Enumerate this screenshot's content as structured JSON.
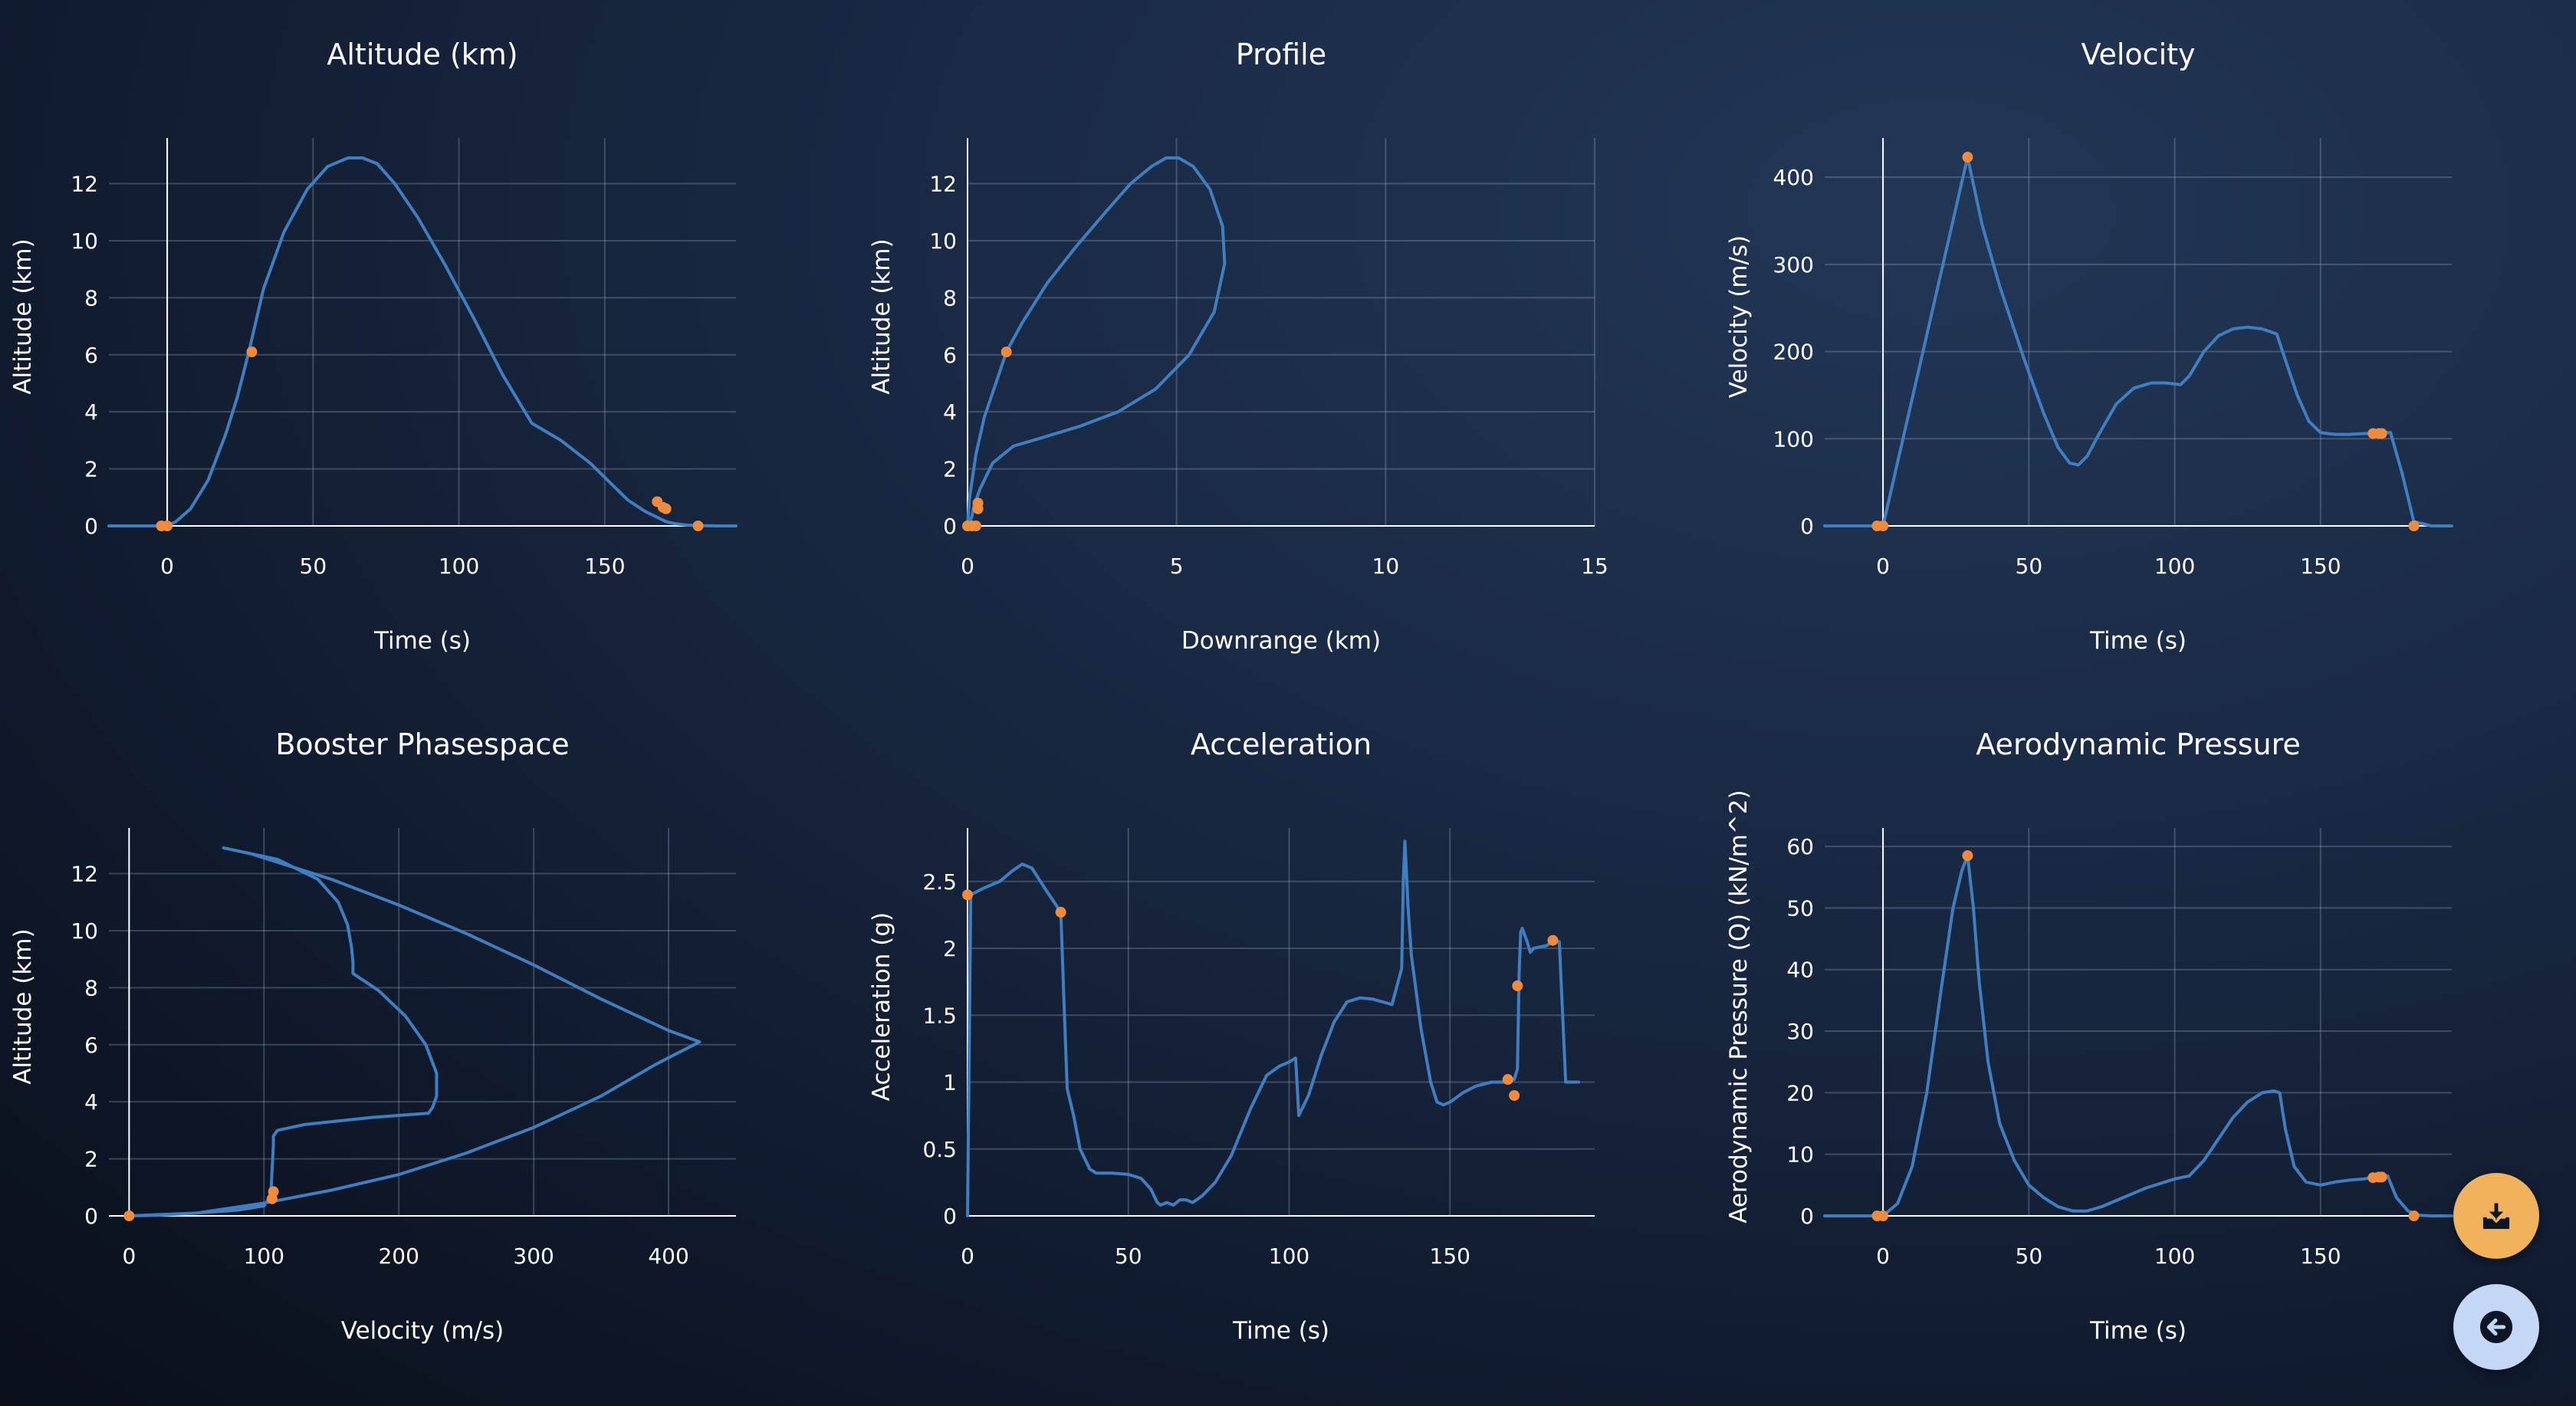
{
  "colors": {
    "series": "#3f7fc1",
    "points": "#f08a3c",
    "download_button": "#f0b25c",
    "back_button": "#c4d7f6"
  },
  "buttons": {
    "download_icon": "download-icon",
    "back_icon": "arrow-left-icon"
  },
  "chart_data": [
    {
      "type": "line",
      "title": "Altitude (km)",
      "xlabel": "Time (s)",
      "ylabel": "Altitude (km)",
      "xlim": [
        -20,
        195
      ],
      "ylim": [
        0,
        13.6
      ],
      "xticks": [
        0,
        50,
        100,
        150
      ],
      "yticks": [
        0,
        2,
        4,
        6,
        8,
        10,
        12
      ],
      "x_axis_at_zero": true,
      "y_axis_at_zero": true,
      "grid": true,
      "series": [
        {
          "x": [
            -20,
            -5,
            0,
            3,
            8,
            14,
            20,
            24,
            28,
            33,
            40,
            48,
            55,
            62,
            67,
            72,
            78,
            86,
            95,
            105,
            115,
            125,
            135,
            145,
            152,
            158,
            164,
            168,
            171,
            174,
            178,
            182,
            188,
            195
          ],
          "y": [
            0,
            0,
            0,
            0.15,
            0.6,
            1.6,
            3.2,
            4.5,
            6.1,
            8.3,
            10.3,
            11.8,
            12.6,
            12.9,
            12.9,
            12.7,
            12.0,
            10.8,
            9.2,
            7.3,
            5.3,
            3.6,
            3.0,
            2.2,
            1.5,
            0.9,
            0.5,
            0.3,
            0.15,
            0.08,
            0.03,
            0.01,
            0,
            0
          ]
        }
      ],
      "points": {
        "x": [
          -2,
          0,
          29,
          168,
          170,
          171,
          182
        ],
        "y": [
          0,
          0,
          6.1,
          0.85,
          0.65,
          0.6,
          0
        ]
      }
    },
    {
      "type": "line",
      "title": "Profile",
      "xlabel": "Downrange (km)",
      "ylabel": "Altitude (km)",
      "xlim": [
        0,
        15
      ],
      "ylim": [
        0,
        13.6
      ],
      "xticks": [
        0,
        5,
        10,
        15
      ],
      "yticks": [
        0,
        2,
        4,
        6,
        8,
        10,
        12
      ],
      "x_axis_at_zero": true,
      "y_axis_at_zero": true,
      "grid": true,
      "series": [
        {
          "x": [
            0,
            0.05,
            0.2,
            0.4,
            0.7,
            0.93,
            1.3,
            1.9,
            2.6,
            3.3,
            3.9,
            4.4,
            4.75,
            5.05,
            5.4,
            5.8,
            6.1,
            6.15,
            5.9,
            5.3,
            4.5,
            3.6,
            2.7,
            1.8,
            1.1,
            0.6,
            0.3,
            0.15,
            0.1,
            0
          ],
          "y": [
            0,
            1,
            2.5,
            3.8,
            5.1,
            6.1,
            7.1,
            8.5,
            9.8,
            11.0,
            12.0,
            12.6,
            12.9,
            12.9,
            12.6,
            11.8,
            10.5,
            9.2,
            7.5,
            6.0,
            4.8,
            4.0,
            3.5,
            3.1,
            2.8,
            2.2,
            1.3,
            0.7,
            0.3,
            0
          ]
        }
      ],
      "points": {
        "x": [
          0,
          0.1,
          0.2,
          0.25,
          0.25,
          0.93
        ],
        "y": [
          0,
          0,
          0,
          0.6,
          0.8,
          6.1
        ]
      }
    },
    {
      "type": "line",
      "title": "Velocity",
      "xlabel": "Time (s)",
      "ylabel": "Velocity (m/s)",
      "xlim": [
        -20,
        195
      ],
      "ylim": [
        0,
        445
      ],
      "xticks": [
        0,
        50,
        100,
        150
      ],
      "yticks": [
        0,
        100,
        200,
        300,
        400
      ],
      "x_axis_at_zero": true,
      "y_axis_at_zero": true,
      "grid": true,
      "series": [
        {
          "x": [
            -20,
            -5,
            0,
            29,
            34,
            40,
            48,
            55,
            60,
            64,
            67,
            70,
            74,
            80,
            86,
            92,
            97,
            102,
            105,
            110,
            115,
            120,
            125,
            130,
            135,
            138,
            142,
            146,
            150,
            155,
            160,
            165,
            168,
            171,
            174,
            178,
            182,
            188,
            195
          ],
          "y": [
            0,
            0,
            0,
            423,
            345,
            275,
            195,
            130,
            90,
            72,
            70,
            80,
            105,
            140,
            158,
            164,
            164,
            162,
            172,
            200,
            218,
            226,
            228,
            226,
            220,
            190,
            150,
            120,
            107,
            105,
            105,
            106,
            106,
            107,
            107,
            60,
            5,
            0,
            0
          ]
        }
      ],
      "points": {
        "x": [
          -2,
          0,
          29,
          168,
          170,
          171,
          182
        ],
        "y": [
          0,
          0,
          423,
          106,
          106,
          106,
          0
        ]
      }
    },
    {
      "type": "line",
      "title": "Booster Phasespace",
      "xlabel": "Velocity (m/s)",
      "ylabel": "Altitude (km)",
      "xlim": [
        -15,
        450
      ],
      "ylim": [
        0,
        13.6
      ],
      "xticks": [
        0,
        100,
        200,
        300,
        400
      ],
      "yticks": [
        0,
        2,
        4,
        6,
        8,
        10,
        12
      ],
      "x_axis_at_zero": true,
      "y_axis_at_zero": true,
      "grid": true,
      "series": [
        {
          "x": [
            0,
            50,
            100,
            150,
            200,
            250,
            300,
            350,
            390,
            423,
            400,
            350,
            300,
            250,
            200,
            150,
            110,
            90,
            70,
            110,
            140,
            155,
            162,
            165,
            166,
            166,
            185,
            205,
            220,
            228,
            228,
            225,
            222,
            180,
            130,
            110,
            107,
            107,
            106,
            105,
            100,
            80,
            50,
            20,
            0
          ],
          "y": [
            0,
            0.1,
            0.45,
            0.9,
            1.45,
            2.2,
            3.1,
            4.2,
            5.3,
            6.1,
            6.5,
            7.6,
            8.8,
            9.9,
            10.9,
            11.8,
            12.4,
            12.7,
            12.9,
            12.5,
            11.8,
            11.0,
            10.2,
            9.4,
            8.9,
            8.5,
            7.9,
            7.0,
            6.0,
            5.0,
            4.2,
            3.8,
            3.6,
            3.45,
            3.2,
            3.0,
            2.8,
            2.5,
            1.6,
            0.7,
            0.35,
            0.2,
            0.1,
            0.02,
            0
          ]
        }
      ],
      "points": {
        "x": [
          0,
          106,
          107
        ],
        "y": [
          0,
          0.6,
          0.85
        ]
      }
    },
    {
      "type": "line",
      "title": "Acceleration",
      "xlabel": "Time (s)",
      "ylabel": "Acceleration (g)",
      "xlim": [
        0,
        195
      ],
      "ylim": [
        0,
        2.9
      ],
      "xticks": [
        0,
        50,
        100,
        150
      ],
      "yticks": [
        0,
        0.5,
        1,
        1.5,
        2,
        2.5
      ],
      "ytick_labels": [
        "0",
        "0.5",
        "1",
        "1.5",
        "2",
        "2.5"
      ],
      "x_axis_at_zero": true,
      "y_axis_at_zero": true,
      "grid": true,
      "series": [
        {
          "x": [
            0,
            1,
            5,
            10,
            14,
            17,
            20,
            24,
            29,
            30,
            31,
            33,
            35,
            38,
            40,
            45,
            50,
            54,
            57,
            59,
            60,
            62,
            64,
            66,
            68,
            70,
            73,
            77,
            82,
            88,
            93,
            97,
            100,
            102,
            103,
            106,
            110,
            114,
            118,
            122,
            126,
            129,
            132,
            135,
            135.5,
            136,
            137,
            138,
            141,
            144,
            146,
            148,
            150,
            154,
            158,
            163,
            168,
            170,
            171,
            171.5,
            172,
            172.5,
            174,
            175,
            176,
            180,
            182,
            184,
            186,
            190
          ],
          "y": [
            0,
            2.4,
            2.45,
            2.5,
            2.58,
            2.63,
            2.6,
            2.45,
            2.27,
            1.6,
            0.95,
            0.75,
            0.5,
            0.35,
            0.32,
            0.32,
            0.31,
            0.28,
            0.2,
            0.1,
            0.08,
            0.1,
            0.08,
            0.12,
            0.12,
            0.1,
            0.15,
            0.25,
            0.45,
            0.8,
            1.05,
            1.12,
            1.15,
            1.18,
            0.75,
            0.9,
            1.2,
            1.45,
            1.6,
            1.63,
            1.62,
            1.6,
            1.58,
            1.85,
            2.5,
            2.8,
            2.3,
            1.95,
            1.4,
            1.0,
            0.85,
            0.83,
            0.85,
            0.92,
            0.97,
            1.0,
            1.0,
            1.02,
            1.1,
            1.8,
            2.12,
            2.15,
            2.05,
            1.97,
            2.0,
            2.02,
            2.05,
            2.05,
            1.0,
            1.0
          ]
        }
      ],
      "points": {
        "x": [
          0,
          29,
          168,
          170,
          171,
          182
        ],
        "y": [
          2.4,
          2.27,
          1.02,
          0.9,
          1.72,
          2.06
        ]
      }
    },
    {
      "type": "line",
      "title": "Aerodynamic Pressure",
      "xlabel": "Time (s)",
      "ylabel": "Aerodynamic Pressure (Q) (kN/m^2)",
      "xlim": [
        -20,
        195
      ],
      "ylim": [
        0,
        63
      ],
      "xticks": [
        0,
        50,
        100,
        150
      ],
      "yticks": [
        0,
        10,
        20,
        30,
        40,
        50,
        60
      ],
      "x_axis_at_zero": true,
      "y_axis_at_zero": true,
      "grid": true,
      "series": [
        {
          "x": [
            -20,
            -5,
            0,
            5,
            10,
            15,
            20,
            24,
            27,
            29,
            31,
            33,
            36,
            40,
            45,
            50,
            55,
            60,
            65,
            70,
            75,
            80,
            90,
            100,
            105,
            110,
            115,
            120,
            125,
            130,
            134,
            136,
            138,
            141,
            145,
            150,
            155,
            160,
            165,
            168,
            171,
            173,
            176,
            180,
            184,
            188,
            195
          ],
          "y": [
            0,
            0,
            0,
            2,
            8,
            20,
            37,
            50,
            56,
            58.5,
            50,
            38,
            25,
            15,
            9,
            5,
            3,
            1.5,
            0.8,
            0.8,
            1.5,
            2.5,
            4.5,
            6,
            6.5,
            9,
            12.5,
            16,
            18.5,
            20,
            20.3,
            20,
            14,
            8,
            5.5,
            5,
            5.5,
            5.8,
            6,
            6.3,
            6.5,
            6.5,
            3,
            0.8,
            0.1,
            0,
            0
          ]
        }
      ],
      "points": {
        "x": [
          -2,
          0,
          29,
          168,
          170,
          171,
          182
        ],
        "y": [
          0,
          0,
          58.5,
          6.2,
          6.3,
          6.3,
          0
        ]
      }
    }
  ]
}
